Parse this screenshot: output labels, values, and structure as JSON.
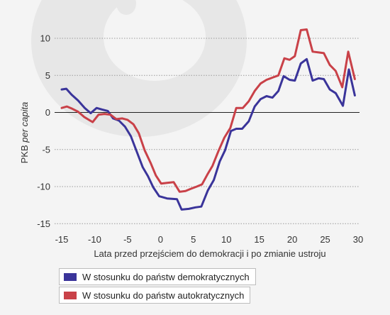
{
  "chart_data": {
    "type": "line",
    "xlabel": "Lata przed przejściem do demokracji i po zmianie ustroju",
    "ylabel_main": "PKB ",
    "ylabel_italic": "per capita",
    "xlim": [
      -15,
      30
    ],
    "ylim": [
      -15,
      13
    ],
    "xticks": [
      -15,
      -10,
      -5,
      0,
      5,
      10,
      15,
      20,
      25,
      30
    ],
    "yticks": [
      10,
      5,
      0,
      -5,
      -10,
      -15
    ],
    "grid": "horizontal-dotted",
    "legend_position": "bottom-left",
    "series": [
      {
        "name": "W stosunku do państw demokratycznych",
        "color": "#3a349a",
        "points": [
          [
            -15,
            3.1
          ],
          [
            -14.3,
            3.2
          ],
          [
            -13.5,
            2.4
          ],
          [
            -12.5,
            1.6
          ],
          [
            -11.5,
            0.6
          ],
          [
            -10.6,
            -0.1
          ],
          [
            -9.7,
            0.6
          ],
          [
            -8.9,
            0.4
          ],
          [
            -8,
            0.2
          ],
          [
            -7.2,
            -0.8
          ],
          [
            -6.3,
            -1.1
          ],
          [
            -5.4,
            -1.9
          ],
          [
            -4.5,
            -3.2
          ],
          [
            -3.6,
            -5.3
          ],
          [
            -2.7,
            -7.4
          ],
          [
            -1.9,
            -8.6
          ],
          [
            -1.1,
            -10.1
          ],
          [
            -0.2,
            -11.3
          ],
          [
            1,
            -11.6
          ],
          [
            2.5,
            -11.7
          ],
          [
            3.2,
            -13.1
          ],
          [
            4.3,
            -13.0
          ],
          [
            5.3,
            -12.8
          ],
          [
            6.2,
            -12.7
          ],
          [
            7.2,
            -10.5
          ],
          [
            8.1,
            -9.1
          ],
          [
            9,
            -6.6
          ],
          [
            9.8,
            -5.1
          ],
          [
            10.7,
            -2.5
          ],
          [
            11.5,
            -2.2
          ],
          [
            12.4,
            -2.2
          ],
          [
            13.4,
            -1.2
          ],
          [
            14.3,
            0.8
          ],
          [
            15.2,
            1.8
          ],
          [
            16.1,
            2.2
          ],
          [
            17,
            2.0
          ],
          [
            17.9,
            2.9
          ],
          [
            18.7,
            4.9
          ],
          [
            19.6,
            4.4
          ],
          [
            20.4,
            4.3
          ],
          [
            21.3,
            6.6
          ],
          [
            22.2,
            7.2
          ],
          [
            23.1,
            4.3
          ],
          [
            24,
            4.6
          ],
          [
            24.8,
            4.5
          ],
          [
            25.7,
            3.1
          ],
          [
            26.6,
            2.6
          ],
          [
            27.7,
            0.9
          ],
          [
            28.6,
            5.8
          ],
          [
            29.5,
            2.3
          ]
        ]
      },
      {
        "name": "W stosunku do państw autokratycznych",
        "color": "#c94148",
        "points": [
          [
            -15,
            0.6
          ],
          [
            -14.2,
            0.8
          ],
          [
            -13.4,
            0.5
          ],
          [
            -12.5,
            0.1
          ],
          [
            -11.6,
            -0.6
          ],
          [
            -10.3,
            -1.3
          ],
          [
            -9.4,
            -0.3
          ],
          [
            -8.5,
            -0.2
          ],
          [
            -7.6,
            -0.3
          ],
          [
            -6.7,
            -0.9
          ],
          [
            -5.8,
            -0.8
          ],
          [
            -5,
            -1.0
          ],
          [
            -4.1,
            -1.6
          ],
          [
            -3.3,
            -2.8
          ],
          [
            -2.4,
            -5.1
          ],
          [
            -1.5,
            -6.8
          ],
          [
            -0.7,
            -8.5
          ],
          [
            0.1,
            -9.6
          ],
          [
            1,
            -9.5
          ],
          [
            2,
            -9.4
          ],
          [
            2.9,
            -10.7
          ],
          [
            3.8,
            -10.6
          ],
          [
            4.6,
            -10.3
          ],
          [
            5.5,
            -10.0
          ],
          [
            6.3,
            -9.7
          ],
          [
            7.1,
            -8.4
          ],
          [
            7.9,
            -7.2
          ],
          [
            8.8,
            -5.2
          ],
          [
            9.7,
            -3.4
          ],
          [
            10.6,
            -2.1
          ],
          [
            11.5,
            0.6
          ],
          [
            12.5,
            0.6
          ],
          [
            13.4,
            1.5
          ],
          [
            14.3,
            2.9
          ],
          [
            15.2,
            3.9
          ],
          [
            16.1,
            4.4
          ],
          [
            17,
            4.7
          ],
          [
            17.9,
            5.0
          ],
          [
            18.8,
            7.3
          ],
          [
            19.6,
            7.1
          ],
          [
            20.4,
            7.6
          ],
          [
            21.3,
            11.1
          ],
          [
            22.2,
            11.2
          ],
          [
            23.1,
            8.2
          ],
          [
            24,
            8.1
          ],
          [
            24.8,
            8.0
          ],
          [
            25.7,
            6.4
          ],
          [
            26.6,
            5.6
          ],
          [
            27.6,
            3.4
          ],
          [
            28.5,
            8.2
          ],
          [
            29.5,
            4.5
          ]
        ]
      }
    ]
  }
}
